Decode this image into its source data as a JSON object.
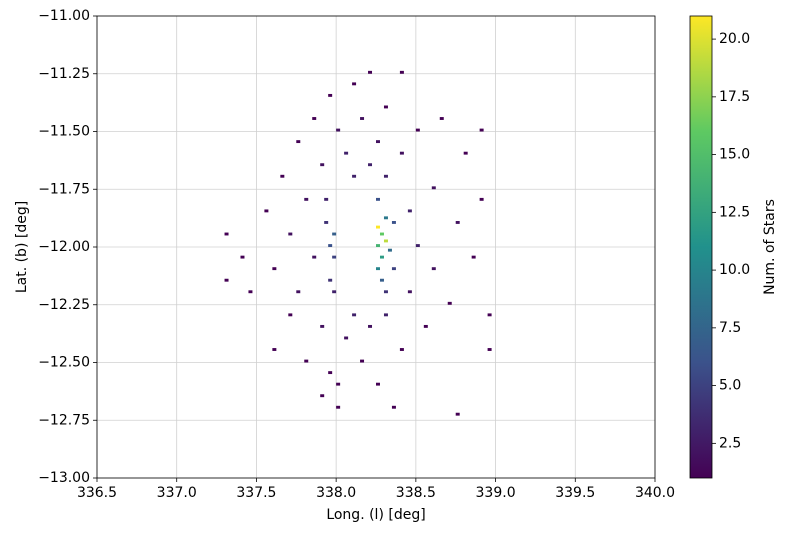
{
  "chart_data": {
    "type": "hist2d",
    "x_label": "Long. (l) [deg]",
    "y_label": "Lat. (b) [deg]",
    "colorbar_label": "Num. of Stars",
    "colormap": "viridis",
    "grid": true,
    "xlim": [
      336.5,
      340.0
    ],
    "ylim": [
      -13.0,
      -11.0
    ],
    "xticks": [
      336.5,
      {
        "value": 337,
        "label": "337.0"
      },
      337.5,
      {
        "value": 338,
        "label": "338.0"
      },
      338.5,
      {
        "value": 339,
        "label": "339.0"
      },
      339.5,
      {
        "value": 340,
        "label": "340.0"
      }
    ],
    "yticks": [
      {
        "value": -13,
        "label": "−13.00"
      },
      {
        "value": -12.75,
        "label": "−12.75"
      },
      {
        "value": -12.5,
        "label": "−12.50"
      },
      {
        "value": -12.25,
        "label": "−12.25"
      },
      {
        "value": -12,
        "label": "−12.00"
      },
      {
        "value": -11.75,
        "label": "−11.75"
      },
      {
        "value": -11.5,
        "label": "−11.50"
      },
      {
        "value": -11.25,
        "label": "−11.25"
      },
      {
        "value": -11,
        "label": "−11.00"
      }
    ],
    "clim": [
      1,
      21
    ],
    "cticks": [
      2.5,
      {
        "value": 5,
        "label": "5.0"
      },
      7.5,
      {
        "value": 10,
        "label": "10.0"
      },
      12.5,
      {
        "value": 15,
        "label": "15.0"
      },
      17.5,
      {
        "value": 20,
        "label": "20.0"
      }
    ],
    "bin_width": [
      0.025,
      0.0125
    ],
    "x": [
      337.3,
      337.3,
      337.4,
      337.45,
      337.55,
      337.6,
      337.6,
      337.65,
      337.7,
      337.7,
      337.75,
      337.75,
      337.8,
      337.8,
      337.85,
      337.85,
      337.9,
      337.9,
      337.9,
      337.95,
      337.95,
      338.0,
      338.0,
      338.05,
      338.05,
      338.1,
      338.1,
      338.1,
      338.15,
      338.15,
      338.2,
      338.2,
      338.25,
      338.25,
      338.3,
      338.3,
      338.3,
      338.35,
      338.4,
      338.4,
      338.45,
      338.45,
      338.5,
      338.5,
      338.55,
      338.6,
      338.6,
      338.65,
      338.7,
      338.75,
      338.75,
      338.8,
      338.85,
      338.9,
      338.95,
      338.95,
      338.9,
      338.4,
      338.2,
      338.0,
      337.925,
      337.95,
      337.975,
      337.975,
      337.95,
      337.925,
      337.975,
      338.25,
      338.25,
      338.275,
      338.275,
      338.3,
      338.25,
      338.3,
      338.325,
      338.35,
      338.275,
      338.35,
      338.25,
      338.3
    ],
    "y": [
      -11.95,
      -12.15,
      -12.05,
      -12.2,
      -11.85,
      -12.45,
      -12.1,
      -11.7,
      -12.3,
      -11.95,
      -11.55,
      -12.2,
      -12.5,
      -11.8,
      -12.05,
      -11.45,
      -12.65,
      -11.65,
      -12.35,
      -11.35,
      -12.55,
      -11.5,
      -12.7,
      -11.6,
      -12.4,
      -11.3,
      -11.7,
      -12.3,
      -12.5,
      -11.45,
      -11.65,
      -12.35,
      -11.55,
      -12.6,
      -11.4,
      -11.7,
      -12.3,
      -12.7,
      -11.6,
      -12.45,
      -11.85,
      -12.2,
      -11.5,
      -12.0,
      -12.35,
      -11.75,
      -12.1,
      -11.45,
      -12.25,
      -12.73,
      -11.9,
      -11.6,
      -12.05,
      -11.8,
      -12.3,
      -12.45,
      -11.5,
      -11.25,
      -11.25,
      -12.6,
      -11.9,
      -12.0,
      -11.95,
      -12.05,
      -12.15,
      -11.8,
      -12.2,
      -11.92,
      -12.0,
      -11.95,
      -12.05,
      -11.98,
      -12.1,
      -11.88,
      -12.02,
      -11.9,
      -12.15,
      -12.1,
      -11.8,
      -12.2
    ],
    "values": [
      1,
      1,
      1,
      1,
      1,
      1,
      1,
      1,
      1,
      2,
      1,
      2,
      1,
      2,
      2,
      1,
      1,
      2,
      2,
      1,
      1,
      2,
      1,
      3,
      2,
      1,
      3,
      3,
      1,
      2,
      3,
      2,
      2,
      1,
      1,
      3,
      3,
      1,
      2,
      1,
      3,
      2,
      1,
      3,
      1,
      2,
      2,
      1,
      1,
      1,
      2,
      1,
      1,
      1,
      1,
      1,
      1,
      1,
      1,
      1,
      4,
      6,
      7,
      5,
      4,
      3,
      3,
      21,
      14,
      16,
      12,
      19,
      10,
      9,
      8,
      6,
      7,
      5,
      6,
      4
    ]
  }
}
